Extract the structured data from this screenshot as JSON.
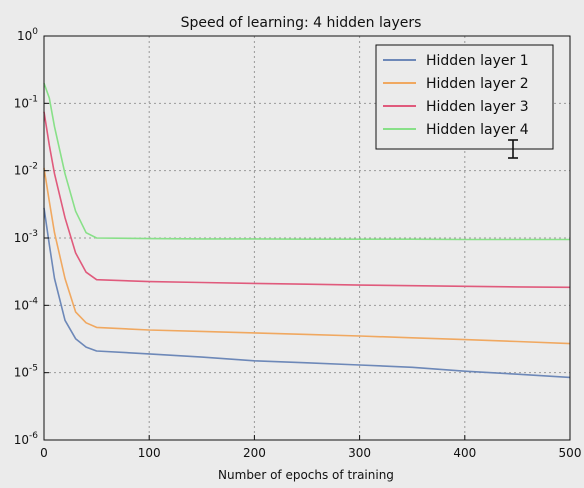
{
  "chart_data": {
    "type": "line",
    "title": "Speed of learning: 4 hidden layers",
    "xlabel": "Number of epochs of training",
    "ylabel": "",
    "xlim": [
      0,
      500
    ],
    "ylim": [
      1e-06,
      1
    ],
    "yscale": "log",
    "grid": true,
    "legend_position": "top-right",
    "x_ticks": [
      0,
      100,
      200,
      300,
      400,
      500
    ],
    "y_ticks": [
      {
        "value": 1,
        "base": "10",
        "exp": "0"
      },
      {
        "value": 0.1,
        "base": "10",
        "exp": "-1"
      },
      {
        "value": 0.01,
        "base": "10",
        "exp": "-2"
      },
      {
        "value": 0.001,
        "base": "10",
        "exp": "-3"
      },
      {
        "value": 0.0001,
        "base": "10",
        "exp": "-4"
      },
      {
        "value": 1e-05,
        "base": "10",
        "exp": "-5"
      },
      {
        "value": 1e-06,
        "base": "10",
        "exp": "-6"
      }
    ],
    "series": [
      {
        "name": "Hidden layer 1",
        "color": "#6d88b8",
        "x": [
          0,
          5,
          10,
          20,
          30,
          40,
          50,
          100,
          150,
          200,
          250,
          300,
          350,
          400,
          450,
          500
        ],
        "y": [
          0.0028,
          0.0008,
          0.00025,
          6e-05,
          3.2e-05,
          2.4e-05,
          2.1e-05,
          1.9e-05,
          1.7e-05,
          1.5e-05,
          1.4e-05,
          1.3e-05,
          1.2e-05,
          1.05e-05,
          9.5e-06,
          8.5e-06
        ]
      },
      {
        "name": "Hidden layer 2",
        "color": "#f0a860",
        "x": [
          0,
          5,
          10,
          20,
          30,
          40,
          50,
          100,
          150,
          200,
          250,
          300,
          350,
          400,
          450,
          500
        ],
        "y": [
          0.011,
          0.0035,
          0.0012,
          0.00025,
          8e-05,
          5.5e-05,
          4.7e-05,
          4.3e-05,
          4.1e-05,
          3.9e-05,
          3.7e-05,
          3.5e-05,
          3.3e-05,
          3.1e-05,
          2.9e-05,
          2.7e-05
        ]
      },
      {
        "name": "Hidden layer 3",
        "color": "#e05a7c",
        "x": [
          0,
          5,
          10,
          20,
          30,
          40,
          50,
          100,
          150,
          200,
          250,
          300,
          350,
          400,
          450,
          500
        ],
        "y": [
          0.075,
          0.024,
          0.009,
          0.002,
          0.0006,
          0.00031,
          0.00024,
          0.000225,
          0.000218,
          0.000212,
          0.000206,
          0.0002,
          0.000196,
          0.000192,
          0.000188,
          0.000185
        ]
      },
      {
        "name": "Hidden layer 4",
        "color": "#88e088",
        "x": [
          0,
          5,
          10,
          20,
          30,
          40,
          50,
          100,
          150,
          200,
          250,
          300,
          350,
          400,
          450,
          500
        ],
        "y": [
          0.2,
          0.12,
          0.045,
          0.009,
          0.0025,
          0.0012,
          0.001,
          0.00098,
          0.00097,
          0.00097,
          0.00096,
          0.00096,
          0.00096,
          0.00095,
          0.00095,
          0.00095
        ]
      }
    ]
  }
}
